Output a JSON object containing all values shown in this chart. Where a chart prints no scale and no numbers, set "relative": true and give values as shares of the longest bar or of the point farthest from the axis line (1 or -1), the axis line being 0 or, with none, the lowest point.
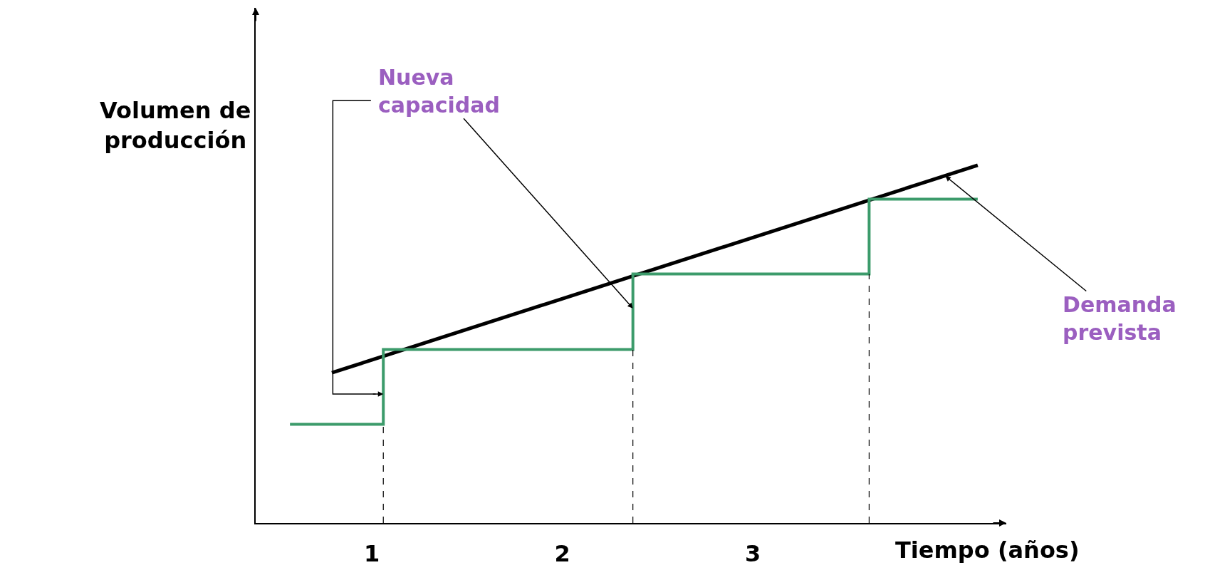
{
  "chart_data": {
    "type": "line",
    "relative": true,
    "xlabel": "Tiempo (años)",
    "ylabel": "Volumen de producción",
    "xlim": [
      0.39,
      4.33
    ],
    "xticks": [
      1,
      2,
      3
    ],
    "series": [
      {
        "color": "#000000",
        "x": [
          0.79,
          4.18
        ],
        "values": [
          0.42,
          1.0
        ]
      },
      {
        "type": "step",
        "color": "#3c9b6b",
        "x": [
          0.57,
          1.06,
          2.37,
          3.61,
          4.18
        ],
        "values": [
          0.276,
          0.485,
          0.696,
          0.905,
          0.905
        ]
      }
    ],
    "ref_lines": [
      {
        "axis": "x",
        "value": 1.06,
        "line_style": "dashed",
        "color": "#000000"
      },
      {
        "axis": "x",
        "value": 2.37,
        "line_style": "dashed",
        "color": "#000000"
      },
      {
        "axis": "x",
        "value": 3.61,
        "line_style": "dashed",
        "color": "#000000"
      }
    ],
    "annotations": [
      {
        "text": "Nueva capacidad",
        "x": 2.37,
        "y": 0.6
      },
      {
        "text": "Demanda prevista",
        "x": 4.01,
        "y": 0.97
      }
    ]
  }
}
